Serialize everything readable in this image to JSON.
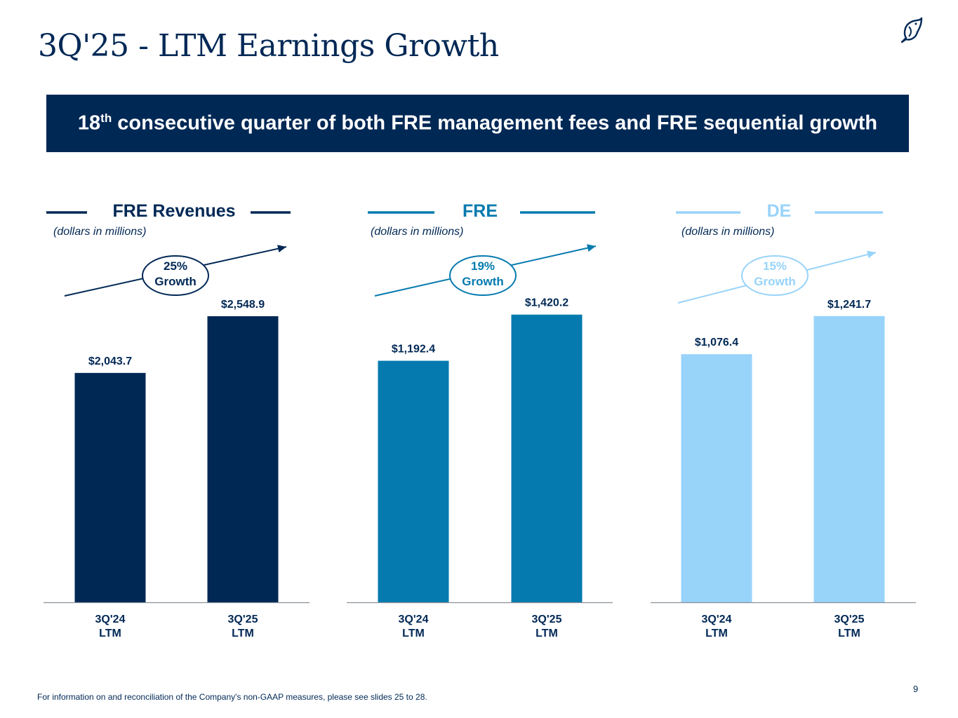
{
  "title": "3Q'25 - LTM Earnings Growth",
  "banner": {
    "prefix": "18",
    "superscript": "th",
    "text": " consecutive quarter of both FRE management fees and FRE sequential growth"
  },
  "logo_icon": "bird-logo-icon",
  "colors": {
    "navy": "#002855",
    "mid_blue": "#057aaf",
    "light_blue": "#98d3fa",
    "axis": "#8a8f99"
  },
  "chart_data": [
    {
      "type": "bar",
      "title": "FRE Revenues",
      "unit_note": "(dollars in millions)",
      "categories": [
        "3Q'24\nLTM",
        "3Q'25\nLTM"
      ],
      "values": [
        2043.7,
        2548.9
      ],
      "value_labels": [
        "$2,043.7",
        "$2,548.9"
      ],
      "growth_label": [
        "25%",
        "Growth"
      ],
      "color": "#002855",
      "ylim": [
        0,
        2680
      ]
    },
    {
      "type": "bar",
      "title": "FRE",
      "unit_note": "(dollars in millions)",
      "categories": [
        "3Q'24\nLTM",
        "3Q'25\nLTM"
      ],
      "values": [
        1192.4,
        1420.2
      ],
      "value_labels": [
        "$1,192.4",
        "$1,420.2"
      ],
      "growth_label": [
        "19%",
        "Growth"
      ],
      "color": "#057aaf",
      "ylim": [
        0,
        1485
      ]
    },
    {
      "type": "bar",
      "title": "DE",
      "unit_note": "(dollars in millions)",
      "categories": [
        "3Q'24\nLTM",
        "3Q'25\nLTM"
      ],
      "values": [
        1076.4,
        1241.7
      ],
      "value_labels": [
        "$1,076.4",
        "$1,241.7"
      ],
      "growth_label": [
        "15%",
        "Growth"
      ],
      "color": "#98d3fa",
      "ylim": [
        0,
        1305
      ]
    }
  ],
  "footnote": "For information on and reconciliation of the Company's non-GAAP measures, please see slides 25 to 28.",
  "page_number": "9"
}
